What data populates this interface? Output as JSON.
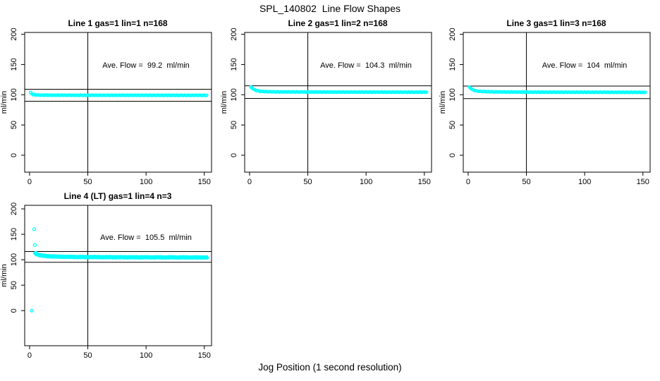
{
  "page": {
    "title": "SPL_140802  Line Flow Shapes",
    "xlabel_shared": "Jog Position (1 second resolution)"
  },
  "colors": {
    "points": "#00ffff",
    "axis": "#000000",
    "background": "#ffffff"
  },
  "chart_data": [
    {
      "type": "scatter",
      "title": "Line 1 gas=1 lin=1 n=168",
      "annotation": "Ave. Flow =  99.2  ml/min",
      "ave_flow_ml_min": 99.2,
      "ylabel": "ml/min",
      "xticks": [
        0,
        50,
        100,
        150
      ],
      "yticks": [
        0,
        50,
        100,
        150,
        200
      ],
      "xlim": [
        -4.2,
        156.2
      ],
      "ylim": [
        -28,
        203
      ],
      "vline_x": 50,
      "hlines": [
        109.1,
        89.3
      ],
      "series": {
        "x_start": 1,
        "x_end": 152,
        "x_step": 1,
        "passes": 1,
        "jitter": 0.3,
        "profile": [
          [
            1,
            103.5
          ],
          [
            2,
            101.5
          ],
          [
            3,
            100.3
          ],
          [
            5,
            99.7
          ],
          [
            10,
            99.3
          ],
          [
            20,
            99.2
          ],
          [
            60,
            99.1
          ],
          [
            152,
            99.0
          ]
        ]
      },
      "outliers": []
    },
    {
      "type": "scatter",
      "title": "Line 2 gas=1 lin=2 n=168",
      "annotation": "Ave. Flow =  104.3  ml/min",
      "ave_flow_ml_min": 104.3,
      "ylabel": "ml/min",
      "xticks": [
        0,
        50,
        100,
        150
      ],
      "yticks": [
        0,
        50,
        100,
        150,
        200
      ],
      "xlim": [
        -4.2,
        156.2
      ],
      "ylim": [
        -28,
        203
      ],
      "vline_x": 50,
      "hlines": [
        114.7,
        93.9
      ],
      "series": {
        "x_start": 1,
        "x_end": 152,
        "x_step": 1,
        "passes": 1,
        "jitter": 0.3,
        "profile": [
          [
            1,
            113
          ],
          [
            2,
            111.5
          ],
          [
            3,
            110
          ],
          [
            4,
            108.5
          ],
          [
            6,
            106.8
          ],
          [
            9,
            105.8
          ],
          [
            14,
            105.1
          ],
          [
            25,
            104.7
          ],
          [
            60,
            104.4
          ],
          [
            152,
            104.2
          ]
        ]
      },
      "outliers": []
    },
    {
      "type": "scatter",
      "title": "Line 3 gas=1 lin=3 n=168",
      "annotation": "Ave. Flow =  104  ml/min",
      "ave_flow_ml_min": 104,
      "ylabel": "ml/min",
      "xticks": [
        0,
        50,
        100,
        150
      ],
      "yticks": [
        0,
        50,
        100,
        150,
        200
      ],
      "xlim": [
        -4.2,
        156.2
      ],
      "ylim": [
        -28,
        203
      ],
      "vline_x": 50,
      "hlines": [
        114.4,
        93.6
      ],
      "series": {
        "x_start": 1,
        "x_end": 152,
        "x_step": 1,
        "passes": 1,
        "jitter": 0.3,
        "profile": [
          [
            1,
            112.5
          ],
          [
            2,
            111
          ],
          [
            3,
            109.5
          ],
          [
            5,
            107.2
          ],
          [
            8,
            105.9
          ],
          [
            13,
            105.2
          ],
          [
            25,
            104.6
          ],
          [
            60,
            104.2
          ],
          [
            152,
            104.0
          ]
        ]
      },
      "outliers": []
    },
    {
      "type": "scatter",
      "title": "Line 4 (LT) gas=1 lin=4 n=3",
      "annotation": "Ave. Flow =  105.5  ml/min",
      "ave_flow_ml_min": 105.5,
      "ylabel": "ml/min",
      "xticks": [
        0,
        50,
        100,
        150
      ],
      "yticks": [
        0,
        50,
        100,
        150,
        200
      ],
      "xlim": [
        -4.2,
        156.2
      ],
      "ylim": [
        -69,
        207
      ],
      "vline_x": 50,
      "hlines": [
        116.1,
        95.0
      ],
      "series": {
        "x_start": 5,
        "x_end": 152,
        "x_step": 1,
        "passes": 3,
        "jitter": 1.1,
        "profile": [
          [
            5,
            113
          ],
          [
            6,
            111.2
          ],
          [
            8,
            109.4
          ],
          [
            11,
            108
          ],
          [
            16,
            106.8
          ],
          [
            24,
            106
          ],
          [
            40,
            105.4
          ],
          [
            70,
            105
          ],
          [
            110,
            104.7
          ],
          [
            152,
            104.4
          ]
        ]
      },
      "outliers": [
        [
          2,
          0
        ],
        [
          4,
          160
        ],
        [
          4.5,
          129
        ]
      ]
    }
  ]
}
